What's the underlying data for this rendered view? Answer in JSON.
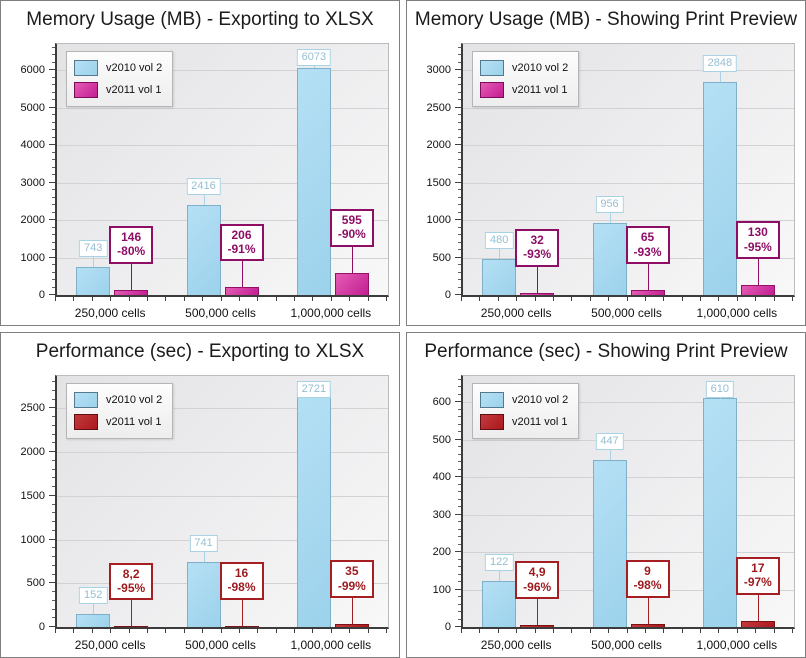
{
  "chart_data": [
    {
      "type": "bar",
      "title": "Memory Usage (MB) - Exporting to XLSX",
      "categories": [
        "250,000 cells",
        "500,000 cells",
        "1,000,000 cells"
      ],
      "ylim": [
        0,
        6700
      ],
      "ytick_step": 1000,
      "grid": true,
      "legend_position": "top-left",
      "series": [
        {
          "name": "v2010 vol 2",
          "values": [
            743,
            2416,
            6073
          ],
          "labels": [
            "743",
            "2416",
            "6073"
          ],
          "style": "blue"
        },
        {
          "name": "v2011 vol 1",
          "values": [
            146,
            206,
            595
          ],
          "labels": [
            "146",
            "206",
            "595"
          ],
          "percent_labels": [
            "-80%",
            "-91%",
            "-90%"
          ],
          "style": "magenta"
        }
      ]
    },
    {
      "type": "bar",
      "title": "Memory Usage (MB) - Showing Print Preview",
      "categories": [
        "250,000 cells",
        "500,000 cells",
        "1,000,000 cells"
      ],
      "ylim": [
        0,
        3350
      ],
      "ytick_step": 500,
      "grid": true,
      "legend_position": "top-left",
      "series": [
        {
          "name": "v2010 vol 2",
          "values": [
            480,
            956,
            2848
          ],
          "labels": [
            "480",
            "956",
            "2848"
          ],
          "style": "blue"
        },
        {
          "name": "v2011 vol 1",
          "values": [
            32,
            65,
            130
          ],
          "labels": [
            "32",
            "65",
            "130"
          ],
          "percent_labels": [
            "-93%",
            "-93%",
            "-95%"
          ],
          "style": "magenta"
        }
      ]
    },
    {
      "type": "bar",
      "title": "Performance (sec) - Exporting to XLSX",
      "categories": [
        "250,000 cells",
        "500,000 cells",
        "1,000,000 cells"
      ],
      "ylim": [
        0,
        2870
      ],
      "ytick_step": 500,
      "grid": true,
      "legend_position": "top-left",
      "series": [
        {
          "name": "v2010 vol 2",
          "values": [
            152,
            741,
            2721
          ],
          "labels": [
            "152",
            "741",
            "2721"
          ],
          "style": "blue"
        },
        {
          "name": "v2011 vol 1",
          "values": [
            8.2,
            16,
            35
          ],
          "labels": [
            "8,2",
            "16",
            "35"
          ],
          "percent_labels": [
            "-95%",
            "-98%",
            "-99%"
          ],
          "style": "red"
        }
      ]
    },
    {
      "type": "bar",
      "title": "Performance (sec) - Showing Print Preview",
      "categories": [
        "250,000 cells",
        "500,000 cells",
        "1,000,000 cells"
      ],
      "ylim": [
        0,
        670
      ],
      "ytick_step": 100,
      "grid": true,
      "legend_position": "top-left",
      "series": [
        {
          "name": "v2010 vol 2",
          "values": [
            122,
            447,
            610
          ],
          "labels": [
            "122",
            "447",
            "610"
          ],
          "style": "blue"
        },
        {
          "name": "v2011 vol 1",
          "values": [
            4.9,
            9,
            17
          ],
          "labels": [
            "4,9",
            "9",
            "17"
          ],
          "percent_labels": [
            "-96%",
            "-98%",
            "-97%"
          ],
          "style": "red"
        }
      ]
    }
  ],
  "styles": {
    "blue": {
      "fill_from": "#b5e0f4",
      "fill_to": "#9cd2ec",
      "border": "#7fb0ca",
      "label_color": "#95bed2",
      "label_border": "#a9d2e4",
      "swatch": "#a6d9f2",
      "swatch_border": "#54788c"
    },
    "magenta": {
      "fill_from": "#e55cb5",
      "fill_to": "#c21e92",
      "border": "#951168",
      "label_color": "#8e0e66",
      "label_border": "#8e0e66",
      "swatch": "#d32ba0",
      "swatch_border": "#7c0c5a"
    },
    "red": {
      "fill_from": "#c33a3e",
      "fill_to": "#aa181c",
      "border": "#7d1114",
      "label_color": "#9e191d",
      "label_border": "#a51e22",
      "swatch": "#b71f24",
      "swatch_border": "#5f0f12"
    }
  }
}
